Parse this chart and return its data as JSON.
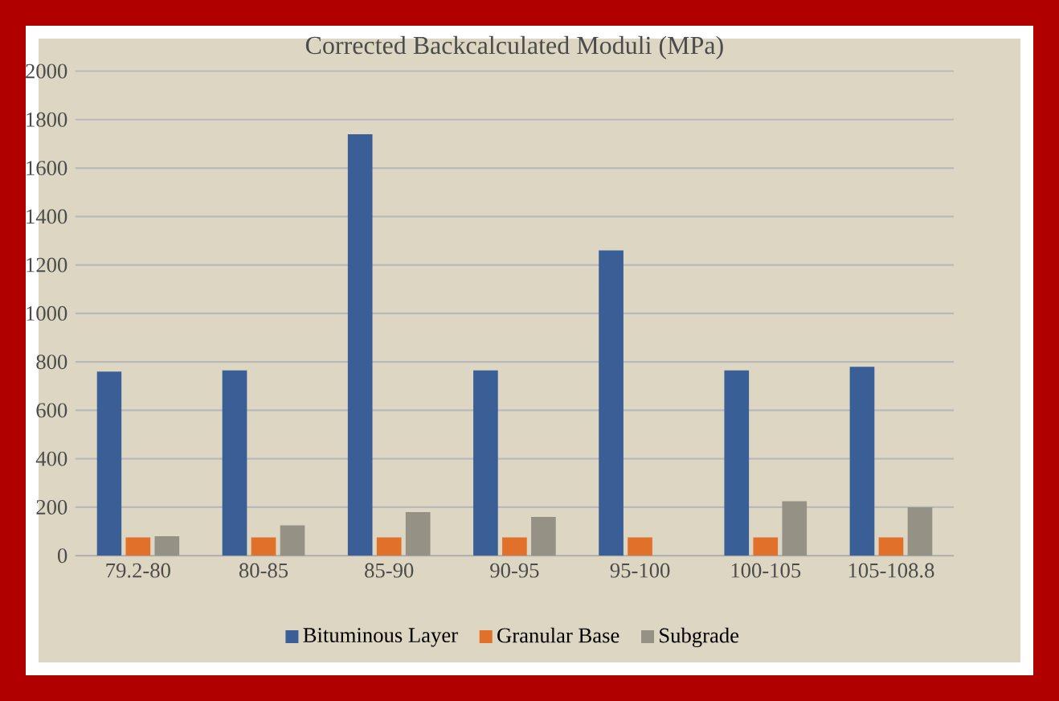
{
  "chart_data": {
    "type": "bar",
    "title": "Corrected Backcalculated Moduli (MPa)",
    "categories": [
      "79.2-80",
      "80-85",
      "85-90",
      "90-95",
      "95-100",
      "100-105",
      "105-108.8"
    ],
    "series": [
      {
        "name": "Bituminous Layer",
        "color": "#3a5f96",
        "values": [
          760,
          765,
          1740,
          765,
          1260,
          765,
          780
        ]
      },
      {
        "name": "Granular Base",
        "color": "#e0702a",
        "values": [
          75,
          75,
          75,
          75,
          75,
          75,
          75
        ]
      },
      {
        "name": "Subgrade",
        "color": "#959185",
        "values": [
          80,
          125,
          180,
          160,
          null,
          225,
          200
        ]
      }
    ],
    "ylim": [
      0,
      2000
    ],
    "yticks": [
      0,
      200,
      400,
      600,
      800,
      1000,
      1200,
      1400,
      1600,
      1800,
      2000
    ],
    "grid": "y",
    "legend": "bottom"
  }
}
